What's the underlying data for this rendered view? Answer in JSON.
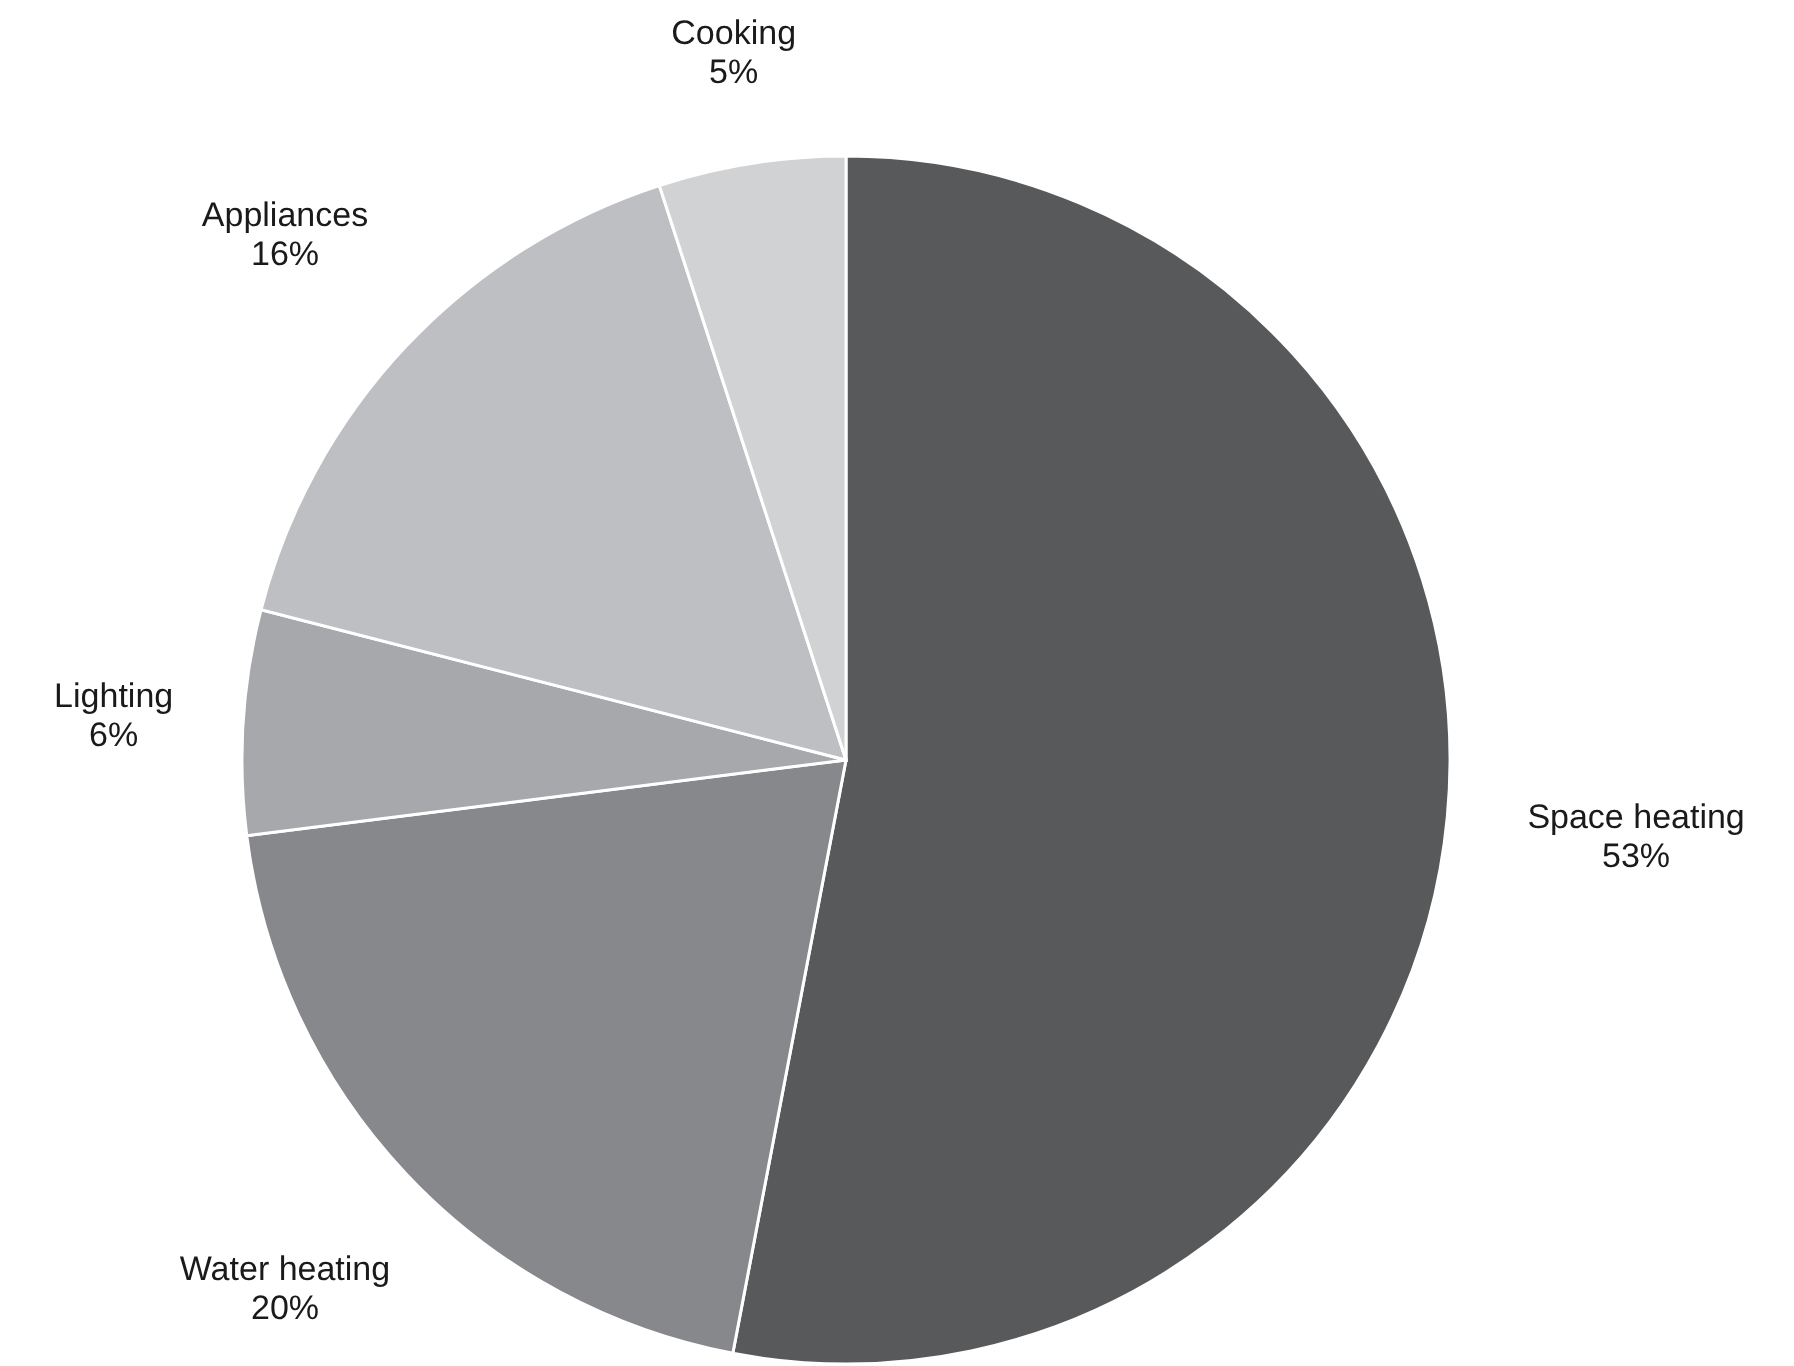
{
  "chart_data": {
    "type": "pie",
    "categories": [
      "Space heating",
      "Water heating",
      "Lighting",
      "Appliances",
      "Cooking"
    ],
    "values": [
      53,
      20,
      6,
      16,
      5
    ],
    "value_labels": [
      "53%",
      "20%",
      "6%",
      "16%",
      "5%"
    ],
    "colors": [
      "#58595b",
      "#87888c",
      "#a7a8ab",
      "#bebfc2",
      "#d1d2d4"
    ],
    "legend": false
  }
}
